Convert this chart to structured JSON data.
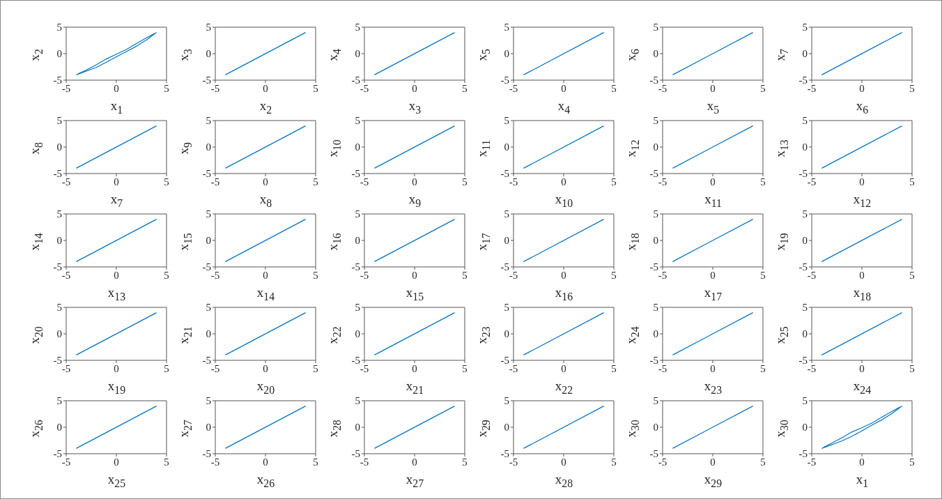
{
  "chart_data": [
    {
      "type": "line",
      "xlabel": "x$_{1}$",
      "ylabel": "x$_{2}$",
      "series": [
        {
          "color": "#0072bd",
          "x": [
            -4,
            -2,
            -1,
            0,
            1,
            2,
            3,
            4
          ],
          "values": [
            -4,
            -2.6,
            -1.6,
            -0.6,
            0.4,
            1.4,
            2.6,
            4
          ]
        },
        {
          "color": "#0072bd",
          "x": [
            -3.8,
            -3,
            -2,
            -1,
            0,
            1,
            2,
            3,
            3.8
          ],
          "values": [
            -3.8,
            -3.1,
            -2.1,
            -1,
            -0.1,
            0.8,
            1.9,
            3,
            3.8
          ]
        }
      ],
      "xlim": [
        -5,
        5
      ],
      "ylim": [
        -5,
        5
      ],
      "xticks": [
        -5,
        0,
        5
      ],
      "yticks": [
        -5,
        0,
        5
      ]
    },
    {
      "type": "line",
      "xlabel": "x$_{2}$",
      "ylabel": "x$_{3}$",
      "series": [
        {
          "color": "#0072bd",
          "x": [
            -4,
            4
          ],
          "values": [
            -4,
            4
          ]
        }
      ],
      "xlim": [
        -5,
        5
      ],
      "ylim": [
        -5,
        5
      ],
      "xticks": [
        -5,
        0,
        5
      ],
      "yticks": [
        -5,
        0,
        5
      ]
    },
    {
      "type": "line",
      "xlabel": "x$_{3}$",
      "ylabel": "x$_{4}$",
      "series": [
        {
          "color": "#0072bd",
          "x": [
            -4,
            4
          ],
          "values": [
            -4,
            4
          ]
        }
      ],
      "xlim": [
        -5,
        5
      ],
      "ylim": [
        -5,
        5
      ],
      "xticks": [
        -5,
        0,
        5
      ],
      "yticks": [
        -5,
        0,
        5
      ]
    },
    {
      "type": "line",
      "xlabel": "x$_{4}$",
      "ylabel": "x$_{5}$",
      "series": [
        {
          "color": "#0072bd",
          "x": [
            -4,
            4
          ],
          "values": [
            -4,
            4
          ]
        }
      ],
      "xlim": [
        -5,
        5
      ],
      "ylim": [
        -5,
        5
      ],
      "xticks": [
        -5,
        0,
        5
      ],
      "yticks": [
        -5,
        0,
        5
      ]
    },
    {
      "type": "line",
      "xlabel": "x$_{5}$",
      "ylabel": "x$_{6}$",
      "series": [
        {
          "color": "#0072bd",
          "x": [
            -4,
            4
          ],
          "values": [
            -4,
            4
          ]
        }
      ],
      "xlim": [
        -5,
        5
      ],
      "ylim": [
        -5,
        5
      ],
      "xticks": [
        -5,
        0,
        5
      ],
      "yticks": [
        -5,
        0,
        5
      ]
    },
    {
      "type": "line",
      "xlabel": "x$_{6}$",
      "ylabel": "x$_{7}$",
      "series": [
        {
          "color": "#0072bd",
          "x": [
            -4,
            4
          ],
          "values": [
            -4,
            4
          ]
        }
      ],
      "xlim": [
        -5,
        5
      ],
      "ylim": [
        -5,
        5
      ],
      "xticks": [
        -5,
        0,
        5
      ],
      "yticks": [
        -5,
        0,
        5
      ]
    },
    {
      "type": "line",
      "xlabel": "x$_{7}$",
      "ylabel": "x$_{8}$",
      "series": [
        {
          "color": "#0072bd",
          "x": [
            -4,
            4
          ],
          "values": [
            -4,
            4
          ]
        }
      ],
      "xlim": [
        -5,
        5
      ],
      "ylim": [
        -5,
        5
      ],
      "xticks": [
        -5,
        0,
        5
      ],
      "yticks": [
        -5,
        0,
        5
      ]
    },
    {
      "type": "line",
      "xlabel": "x$_{8}$",
      "ylabel": "x$_{9}$",
      "series": [
        {
          "color": "#0072bd",
          "x": [
            -4,
            4
          ],
          "values": [
            -4,
            4
          ]
        }
      ],
      "xlim": [
        -5,
        5
      ],
      "ylim": [
        -5,
        5
      ],
      "xticks": [
        -5,
        0,
        5
      ],
      "yticks": [
        -5,
        0,
        5
      ]
    },
    {
      "type": "line",
      "xlabel": "x$_{9}$",
      "ylabel": "x$_{10}$",
      "series": [
        {
          "color": "#0072bd",
          "x": [
            -4,
            4
          ],
          "values": [
            -4,
            4
          ]
        }
      ],
      "xlim": [
        -5,
        5
      ],
      "ylim": [
        -5,
        5
      ],
      "xticks": [
        -5,
        0,
        5
      ],
      "yticks": [
        -5,
        0,
        5
      ]
    },
    {
      "type": "line",
      "xlabel": "x$_{10}$",
      "ylabel": "x$_{11}$",
      "series": [
        {
          "color": "#0072bd",
          "x": [
            -4,
            4
          ],
          "values": [
            -4,
            4
          ]
        }
      ],
      "xlim": [
        -5,
        5
      ],
      "ylim": [
        -5,
        5
      ],
      "xticks": [
        -5,
        0,
        5
      ],
      "yticks": [
        -5,
        0,
        5
      ]
    },
    {
      "type": "line",
      "xlabel": "x$_{11}$",
      "ylabel": "x$_{12}$",
      "series": [
        {
          "color": "#0072bd",
          "x": [
            -4,
            4
          ],
          "values": [
            -4,
            4
          ]
        }
      ],
      "xlim": [
        -5,
        5
      ],
      "ylim": [
        -5,
        5
      ],
      "xticks": [
        -5,
        0,
        5
      ],
      "yticks": [
        -5,
        0,
        5
      ]
    },
    {
      "type": "line",
      "xlabel": "x$_{12}$",
      "ylabel": "x$_{13}$",
      "series": [
        {
          "color": "#0072bd",
          "x": [
            -4,
            4
          ],
          "values": [
            -4,
            4
          ]
        }
      ],
      "xlim": [
        -5,
        5
      ],
      "ylim": [
        -5,
        5
      ],
      "xticks": [
        -5,
        0,
        5
      ],
      "yticks": [
        -5,
        0,
        5
      ]
    },
    {
      "type": "line",
      "xlabel": "x$_{13}$",
      "ylabel": "x$_{14}$",
      "series": [
        {
          "color": "#0072bd",
          "x": [
            -4,
            4
          ],
          "values": [
            -4,
            4
          ]
        }
      ],
      "xlim": [
        -5,
        5
      ],
      "ylim": [
        -5,
        5
      ],
      "xticks": [
        -5,
        0,
        5
      ],
      "yticks": [
        -5,
        0,
        5
      ]
    },
    {
      "type": "line",
      "xlabel": "x$_{14}$",
      "ylabel": "x$_{15}$",
      "series": [
        {
          "color": "#0072bd",
          "x": [
            -4,
            4
          ],
          "values": [
            -4,
            4
          ]
        }
      ],
      "xlim": [
        -5,
        5
      ],
      "ylim": [
        -5,
        5
      ],
      "xticks": [
        -5,
        0,
        5
      ],
      "yticks": [
        -5,
        0,
        5
      ]
    },
    {
      "type": "line",
      "xlabel": "x$_{15}$",
      "ylabel": "x$_{16}$",
      "series": [
        {
          "color": "#0072bd",
          "x": [
            -4,
            4
          ],
          "values": [
            -4,
            4
          ]
        }
      ],
      "xlim": [
        -5,
        5
      ],
      "ylim": [
        -5,
        5
      ],
      "xticks": [
        -5,
        0,
        5
      ],
      "yticks": [
        -5,
        0,
        5
      ]
    },
    {
      "type": "line",
      "xlabel": "x$_{16}$",
      "ylabel": "x$_{17}$",
      "series": [
        {
          "color": "#0072bd",
          "x": [
            -4,
            4
          ],
          "values": [
            -4,
            4
          ]
        }
      ],
      "xlim": [
        -5,
        5
      ],
      "ylim": [
        -5,
        5
      ],
      "xticks": [
        -5,
        0,
        5
      ],
      "yticks": [
        -5,
        0,
        5
      ]
    },
    {
      "type": "line",
      "xlabel": "x$_{17}$",
      "ylabel": "x$_{18}$",
      "series": [
        {
          "color": "#0072bd",
          "x": [
            -4,
            4
          ],
          "values": [
            -4,
            4
          ]
        }
      ],
      "xlim": [
        -5,
        5
      ],
      "ylim": [
        -5,
        5
      ],
      "xticks": [
        -5,
        0,
        5
      ],
      "yticks": [
        -5,
        0,
        5
      ]
    },
    {
      "type": "line",
      "xlabel": "x$_{18}$",
      "ylabel": "x$_{19}$",
      "series": [
        {
          "color": "#0072bd",
          "x": [
            -4,
            4
          ],
          "values": [
            -4,
            4
          ]
        }
      ],
      "xlim": [
        -5,
        5
      ],
      "ylim": [
        -5,
        5
      ],
      "xticks": [
        -5,
        0,
        5
      ],
      "yticks": [
        -5,
        0,
        5
      ]
    },
    {
      "type": "line",
      "xlabel": "x$_{19}$",
      "ylabel": "x$_{20}$",
      "series": [
        {
          "color": "#0072bd",
          "x": [
            -4,
            4
          ],
          "values": [
            -4,
            4
          ]
        }
      ],
      "xlim": [
        -5,
        5
      ],
      "ylim": [
        -5,
        5
      ],
      "xticks": [
        -5,
        0,
        5
      ],
      "yticks": [
        -5,
        0,
        5
      ]
    },
    {
      "type": "line",
      "xlabel": "x$_{20}$",
      "ylabel": "x$_{21}$",
      "series": [
        {
          "color": "#0072bd",
          "x": [
            -4,
            4
          ],
          "values": [
            -4,
            4
          ]
        }
      ],
      "xlim": [
        -5,
        5
      ],
      "ylim": [
        -5,
        5
      ],
      "xticks": [
        -5,
        0,
        5
      ],
      "yticks": [
        -5,
        0,
        5
      ]
    },
    {
      "type": "line",
      "xlabel": "x$_{21}$",
      "ylabel": "x$_{22}$",
      "series": [
        {
          "color": "#0072bd",
          "x": [
            -4,
            4
          ],
          "values": [
            -4,
            4
          ]
        }
      ],
      "xlim": [
        -5,
        5
      ],
      "ylim": [
        -5,
        5
      ],
      "xticks": [
        -5,
        0,
        5
      ],
      "yticks": [
        -5,
        0,
        5
      ]
    },
    {
      "type": "line",
      "xlabel": "x$_{22}$",
      "ylabel": "x$_{23}$",
      "series": [
        {
          "color": "#0072bd",
          "x": [
            -4,
            4
          ],
          "values": [
            -4,
            4
          ]
        }
      ],
      "xlim": [
        -5,
        5
      ],
      "ylim": [
        -5,
        5
      ],
      "xticks": [
        -5,
        0,
        5
      ],
      "yticks": [
        -5,
        0,
        5
      ]
    },
    {
      "type": "line",
      "xlabel": "x$_{23}$",
      "ylabel": "x$_{24}$",
      "series": [
        {
          "color": "#0072bd",
          "x": [
            -4,
            4
          ],
          "values": [
            -4,
            4
          ]
        }
      ],
      "xlim": [
        -5,
        5
      ],
      "ylim": [
        -5,
        5
      ],
      "xticks": [
        -5,
        0,
        5
      ],
      "yticks": [
        -5,
        0,
        5
      ]
    },
    {
      "type": "line",
      "xlabel": "x$_{24}$",
      "ylabel": "x$_{25}$",
      "series": [
        {
          "color": "#0072bd",
          "x": [
            -4,
            4
          ],
          "values": [
            -4,
            4
          ]
        }
      ],
      "xlim": [
        -5,
        5
      ],
      "ylim": [
        -5,
        5
      ],
      "xticks": [
        -5,
        0,
        5
      ],
      "yticks": [
        -5,
        0,
        5
      ]
    },
    {
      "type": "line",
      "xlabel": "x$_{25}$",
      "ylabel": "x$_{26}$",
      "series": [
        {
          "color": "#0072bd",
          "x": [
            -4,
            4
          ],
          "values": [
            -4,
            4
          ]
        }
      ],
      "xlim": [
        -5,
        5
      ],
      "ylim": [
        -5,
        5
      ],
      "xticks": [
        -5,
        0,
        5
      ],
      "yticks": [
        -5,
        0,
        5
      ]
    },
    {
      "type": "line",
      "xlabel": "x$_{26}$",
      "ylabel": "x$_{27}$",
      "series": [
        {
          "color": "#0072bd",
          "x": [
            -4,
            4
          ],
          "values": [
            -4,
            4
          ]
        }
      ],
      "xlim": [
        -5,
        5
      ],
      "ylim": [
        -5,
        5
      ],
      "xticks": [
        -5,
        0,
        5
      ],
      "yticks": [
        -5,
        0,
        5
      ]
    },
    {
      "type": "line",
      "xlabel": "x$_{27}$",
      "ylabel": "x$_{28}$",
      "series": [
        {
          "color": "#0072bd",
          "x": [
            -4,
            4
          ],
          "values": [
            -4,
            4
          ]
        }
      ],
      "xlim": [
        -5,
        5
      ],
      "ylim": [
        -5,
        5
      ],
      "xticks": [
        -5,
        0,
        5
      ],
      "yticks": [
        -5,
        0,
        5
      ]
    },
    {
      "type": "line",
      "xlabel": "x$_{28}$",
      "ylabel": "x$_{29}$",
      "series": [
        {
          "color": "#0072bd",
          "x": [
            -4,
            4
          ],
          "values": [
            -4,
            4
          ]
        }
      ],
      "xlim": [
        -5,
        5
      ],
      "ylim": [
        -5,
        5
      ],
      "xticks": [
        -5,
        0,
        5
      ],
      "yticks": [
        -5,
        0,
        5
      ]
    },
    {
      "type": "line",
      "xlabel": "x$_{29}$",
      "ylabel": "x$_{30}$",
      "series": [
        {
          "color": "#0072bd",
          "x": [
            -4,
            4
          ],
          "values": [
            -4,
            4
          ]
        }
      ],
      "xlim": [
        -5,
        5
      ],
      "ylim": [
        -5,
        5
      ],
      "xticks": [
        -5,
        0,
        5
      ],
      "yticks": [
        -5,
        0,
        5
      ]
    },
    {
      "type": "line",
      "xlabel": "x$_{1}$",
      "ylabel": "x$_{30}$",
      "series": [
        {
          "color": "#0072bd",
          "x": [
            -4,
            -2,
            -1,
            0,
            1,
            2,
            3,
            4
          ],
          "values": [
            -4,
            -2.6,
            -1.7,
            -0.7,
            0.4,
            1.4,
            2.6,
            4
          ]
        },
        {
          "color": "#0072bd",
          "x": [
            -3.8,
            -3,
            -2,
            -1,
            0,
            1,
            2,
            3,
            3.8
          ],
          "values": [
            -3.8,
            -3,
            -2,
            -0.9,
            -0.1,
            0.8,
            1.9,
            3,
            3.8
          ]
        }
      ],
      "xlim": [
        -5,
        5
      ],
      "ylim": [
        -5,
        5
      ],
      "xticks": [
        -5,
        0,
        5
      ],
      "yticks": [
        -5,
        0,
        5
      ]
    }
  ]
}
